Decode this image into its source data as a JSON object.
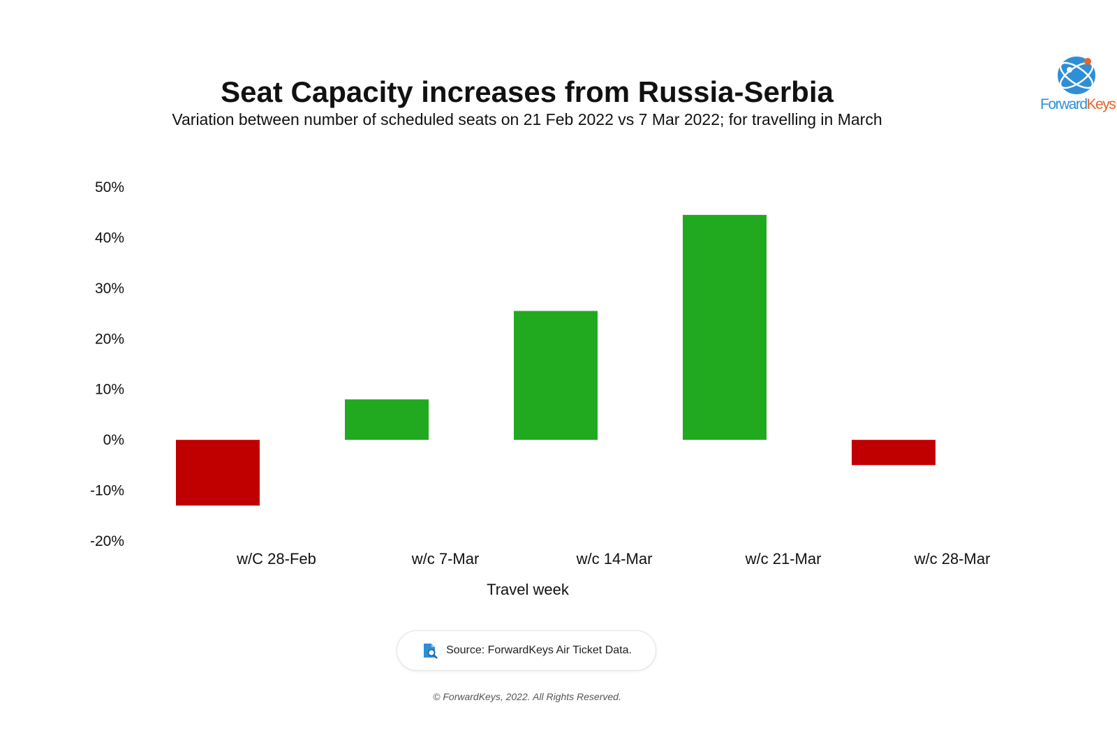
{
  "header": {
    "title": "Seat Capacity increases from Russia-Serbia",
    "subtitle": "Variation between number of scheduled seats on 21 Feb 2022 vs 7 Mar 2022; for travelling in March"
  },
  "logo": {
    "text_forward": "Forward",
    "text_keys": "Keys",
    "color_blue": "#2f8fd6",
    "color_orange": "#e8632a"
  },
  "chart_data": {
    "type": "bar",
    "categories": [
      "w/C 28-Feb",
      "w/c 7-Mar",
      "w/c 14-Mar",
      "w/c 21-Mar",
      "w/c 28-Mar"
    ],
    "values": [
      -13,
      8,
      25.5,
      44.5,
      -5
    ],
    "title": "Seat Capacity increases from Russia-Serbia",
    "subtitle": "Variation between number of scheduled seats on 21 Feb 2022 vs 7 Mar 2022; for travelling in March",
    "xlabel": "Travel week",
    "ylabel": "",
    "ylim": [
      -20,
      50
    ],
    "yticks": [
      50,
      40,
      30,
      20,
      10,
      0,
      -10,
      -20
    ],
    "ytick_labels": [
      "50%",
      "40%",
      "30%",
      "20%",
      "10%",
      "0%",
      "-10%",
      "-20%"
    ],
    "grid": false,
    "legend": "none",
    "colors": {
      "positive": "#21a91f",
      "negative": "#c00000"
    }
  },
  "footer": {
    "source": "Source: ForwardKeys Air Ticket Data.",
    "copyright": "© ForwardKeys, 2022. All Rights Reserved."
  }
}
